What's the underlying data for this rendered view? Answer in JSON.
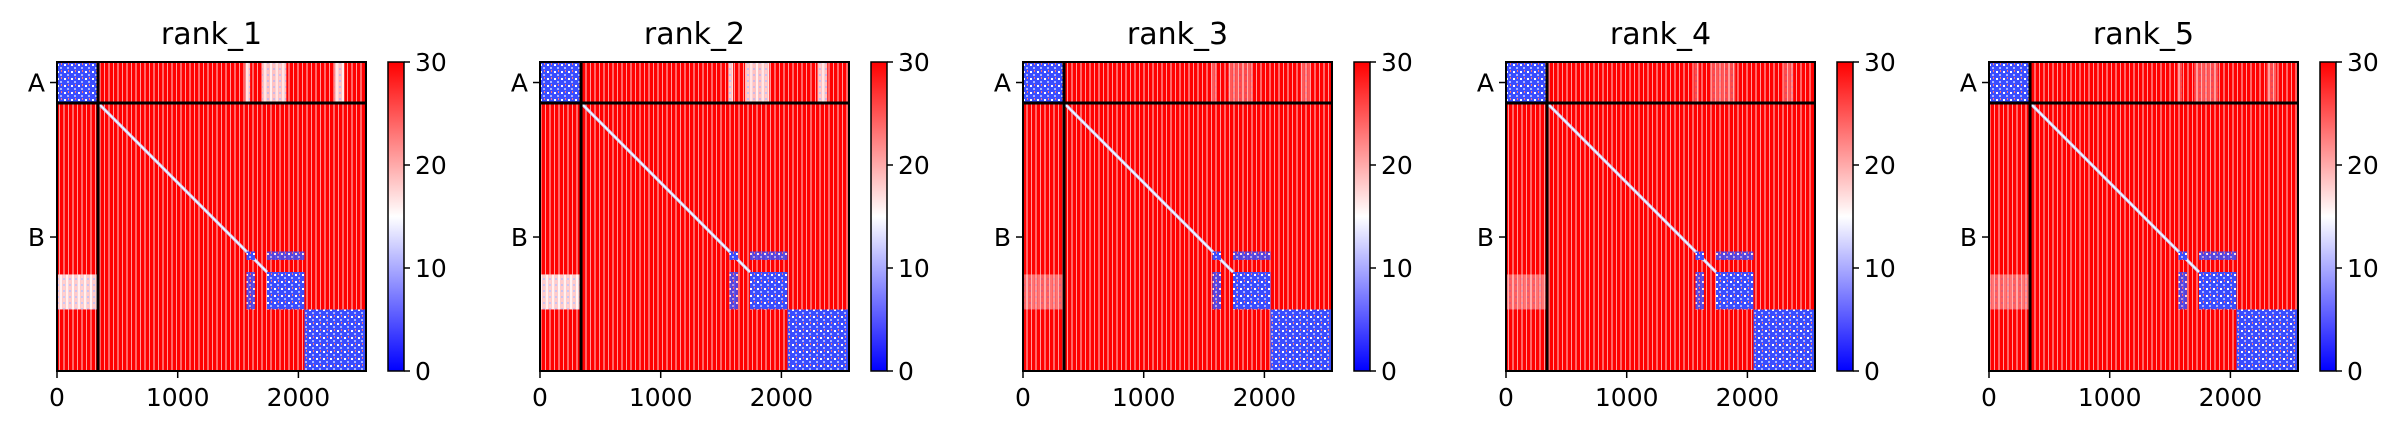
{
  "chart_data": {
    "type": "heatmap",
    "panels": [
      {
        "title": "rank_1"
      },
      {
        "title": "rank_2"
      },
      {
        "title": "rank_3"
      },
      {
        "title": "rank_4"
      },
      {
        "title": "rank_5"
      }
    ],
    "x_range": [
      0,
      2560
    ],
    "x_ticks": [
      "0",
      "1000",
      "2000"
    ],
    "x_tick_values": [
      0,
      1000,
      2000
    ],
    "y_chain_labels": [
      "A",
      "B"
    ],
    "chain_boundary": 340,
    "total_length": 2560,
    "colorbar": {
      "ticks": [
        "0",
        "10",
        "20",
        "30"
      ],
      "tick_values": [
        0,
        10,
        20,
        30
      ],
      "range": [
        0,
        30
      ],
      "colormap": "bwr",
      "colors": [
        "#0000ff",
        "#ffffff",
        "#ff0000"
      ]
    },
    "low_error_blocks": [
      {
        "range": [
          0,
          340
        ]
      },
      {
        "range": [
          1570,
          1640
        ]
      },
      {
        "range": [
          1740,
          2050
        ]
      },
      {
        "range": [
          2050,
          2560
        ]
      }
    ],
    "grid": false
  }
}
